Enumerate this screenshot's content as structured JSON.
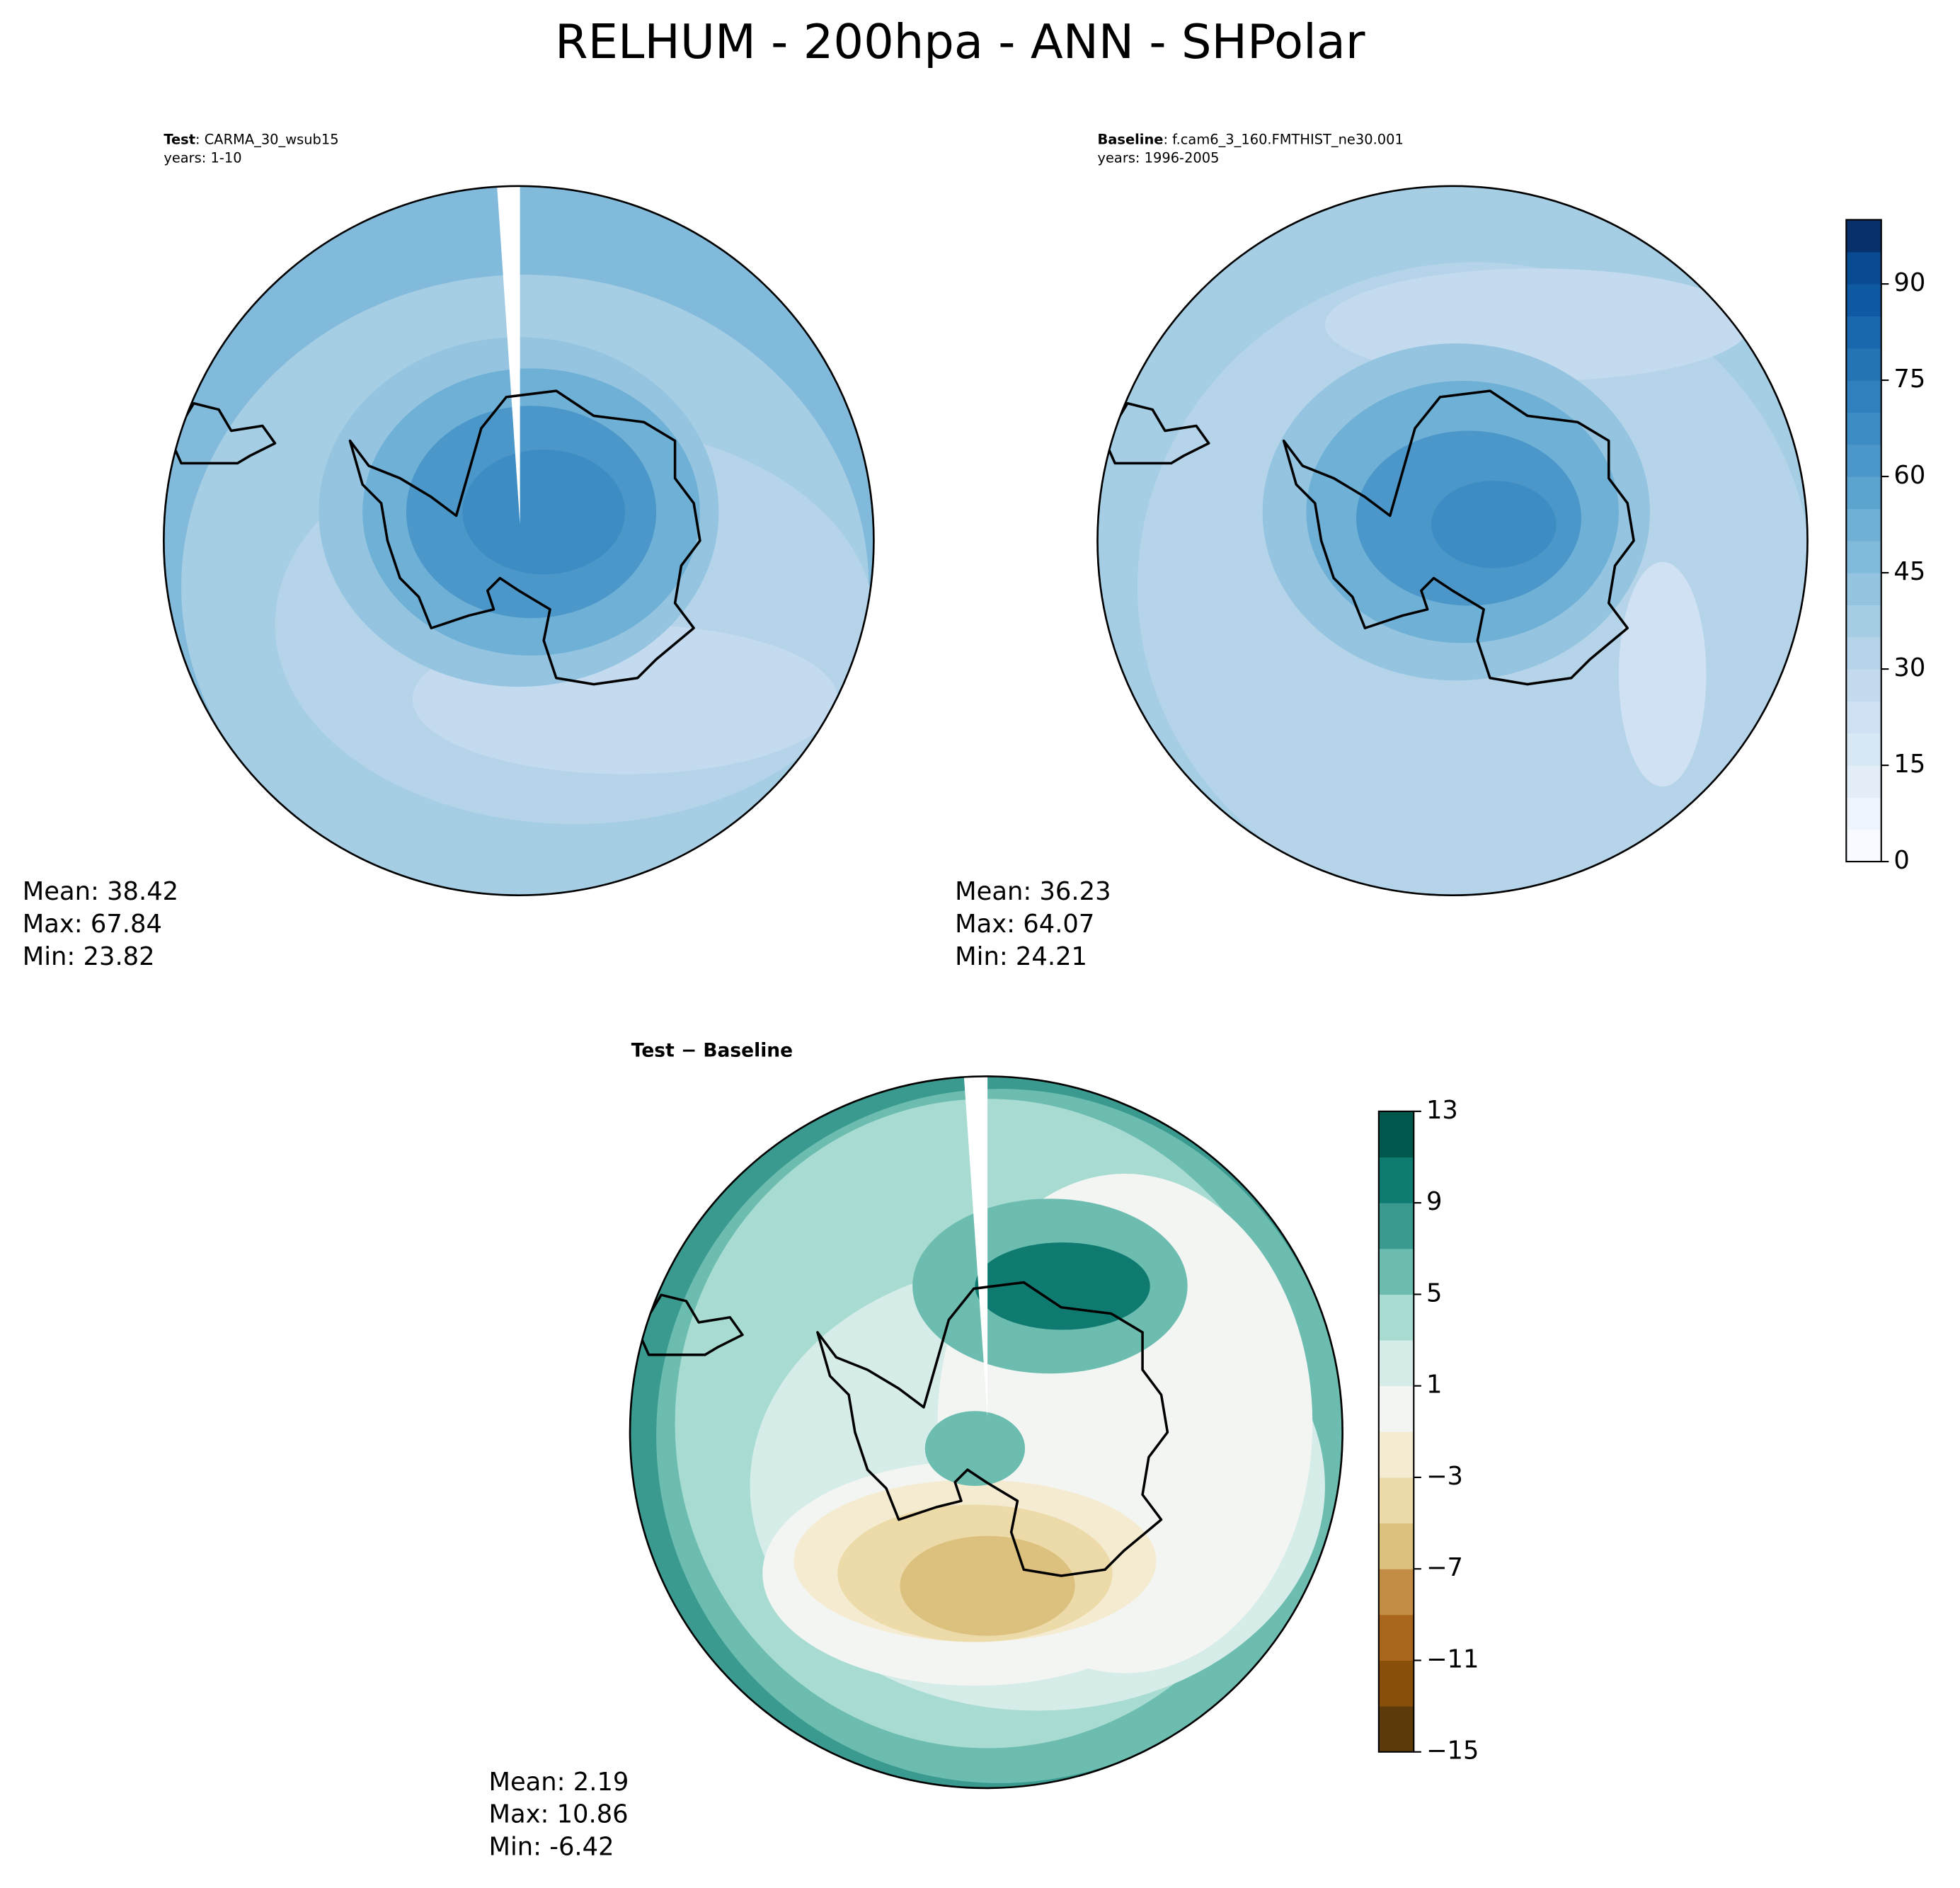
{
  "title": "RELHUM - 200hpa - ANN - SHPolar",
  "panels": [
    {
      "name": "Test",
      "case": ": CARMA_30_wsub15",
      "years": "years: 1-10",
      "stats": [
        "Mean: 38.42",
        "Max: 67.84",
        "Min: 23.82"
      ]
    },
    {
      "name": "Baseline",
      "case": ": f.cam6_3_160.FMTHIST_ne30.001",
      "years": "years: 1996-2005",
      "stats": [
        "Mean: 36.23",
        "Max: 64.07",
        "Min: 24.21"
      ]
    },
    {
      "name": "Test − Baseline",
      "stats": [
        "Mean:  2.19",
        "Max: 10.86",
        "Min: -6.42"
      ]
    }
  ],
  "colorbars": [
    {
      "lim": [
        0,
        100
      ],
      "ticks": [
        0,
        15,
        30,
        45,
        60,
        75,
        90
      ],
      "colors": [
        "#f7fbff",
        "#eef5fc",
        "#e3eef9",
        "#d9e8f5",
        "#cfe1f2",
        "#c4daee",
        "#b5d4e9",
        "#a5cde3",
        "#94c4df",
        "#82badb",
        "#6fb0d7",
        "#5ca4d0",
        "#4b97c9",
        "#3d8cc3",
        "#3080bd",
        "#2373b5",
        "#1967ad",
        "#0e59a2",
        "#084b93",
        "#08306b"
      ]
    },
    {
      "lim": [
        -15,
        13
      ],
      "ticks": [
        {
          "value": -15,
          "label": "−15"
        },
        {
          "value": -11,
          "label": "−11"
        },
        {
          "value": -7,
          "label": "−7"
        },
        {
          "value": -3,
          "label": "−3"
        },
        1,
        5,
        9,
        13
      ],
      "colors": [
        "#5e3b0b",
        "#874f0a",
        "#a8671c",
        "#c38d45",
        "#dcc07d",
        "#eddaa9",
        "#f5ebd1",
        "#f3f5f3",
        "#d6ece8",
        "#a8dcd2",
        "#6cbcb0",
        "#3a9a8f",
        "#0f7b70",
        "#01574c"
      ]
    }
  ]
}
